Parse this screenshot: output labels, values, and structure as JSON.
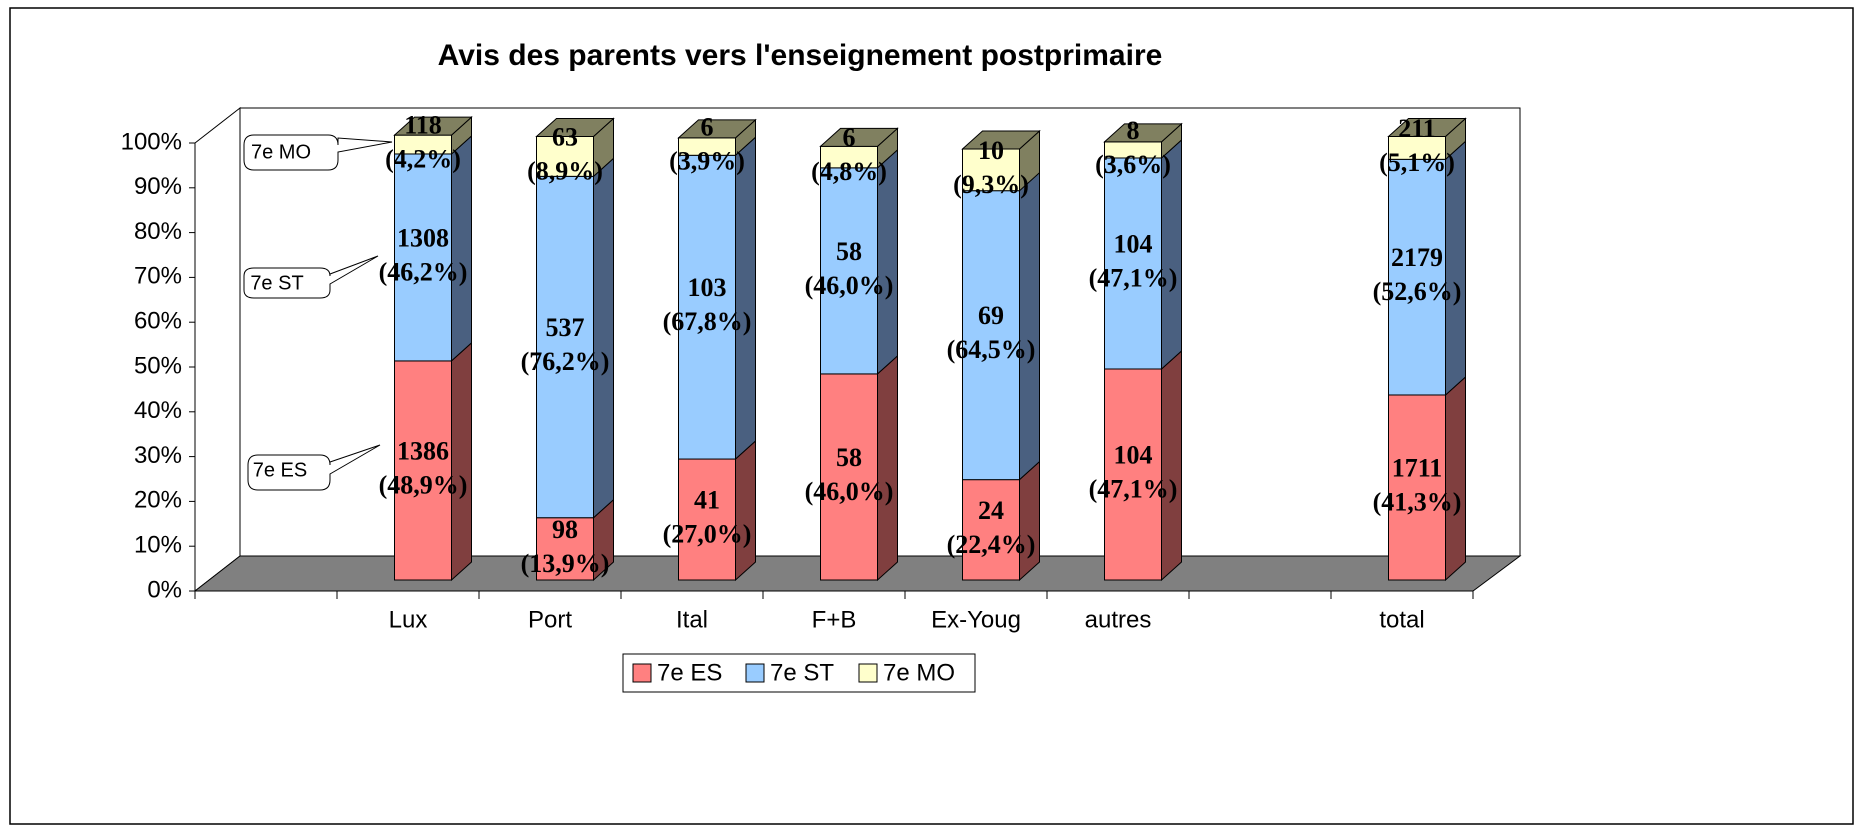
{
  "chart_data": {
    "type": "stacked_bar_3d",
    "title": "Avis des parents vers l'enseignement postprimaire",
    "categories": [
      null,
      "Lux",
      "Port",
      "Ital",
      "F+B",
      "Ex-Youg",
      "autres",
      null,
      "total"
    ],
    "series": [
      {
        "name": "7e ES",
        "color": "#ff8080",
        "side_color": "#803f3f",
        "values": [
          null,
          48.9,
          13.9,
          27.0,
          46.0,
          22.4,
          47.1,
          null,
          41.3
        ],
        "value_labels": [
          null,
          [
            "1386",
            "(48,9%)"
          ],
          [
            "98",
            "(13,9%)"
          ],
          [
            "41",
            "(27,0%)"
          ],
          [
            "58",
            "(46,0%)"
          ],
          [
            "24",
            "(22,4%)"
          ],
          [
            "104",
            "(47,1%)"
          ],
          null,
          [
            "1711",
            "(41,3%)"
          ]
        ]
      },
      {
        "name": "7e ST",
        "color": "#99ccff",
        "side_color": "#4a6080",
        "values": [
          null,
          46.2,
          76.2,
          67.8,
          46.0,
          64.5,
          47.1,
          null,
          52.6
        ],
        "value_labels": [
          null,
          [
            "1308",
            "(46,2%)"
          ],
          [
            "537",
            "(76,2%)"
          ],
          [
            "103",
            "(67,8%)"
          ],
          [
            "58",
            "(46,0%)"
          ],
          [
            "69",
            "(64,5%)"
          ],
          [
            "104",
            "(47,1%)"
          ],
          null,
          [
            "2179",
            "(52,6%)"
          ]
        ]
      },
      {
        "name": "7e MO",
        "color": "#ffffcc",
        "side_color": "#808060",
        "values": [
          null,
          4.2,
          8.9,
          3.9,
          4.8,
          9.3,
          3.6,
          null,
          5.1
        ],
        "value_labels": [
          null,
          [
            "118",
            "(4,2%)"
          ],
          [
            "63",
            "(8,9%)"
          ],
          [
            "6",
            "(3,9%)"
          ],
          [
            "6",
            "(4,8%)"
          ],
          [
            "10",
            "(9,3%)"
          ],
          [
            "8",
            "(3,6%)"
          ],
          null,
          [
            "211",
            "(5,1%)"
          ]
        ]
      }
    ],
    "annotations": [
      "7e MO",
      "7e ST",
      "7e ES"
    ],
    "ylim": [
      0,
      100
    ],
    "yticks": [
      {
        "value": 0,
        "label": "0%"
      },
      {
        "value": 10,
        "label": "10%"
      },
      {
        "value": 20,
        "label": "20%"
      },
      {
        "value": 30,
        "label": "30%"
      },
      {
        "value": 40,
        "label": "40%"
      },
      {
        "value": 50,
        "label": "50%"
      },
      {
        "value": 60,
        "label": "60%"
      },
      {
        "value": 70,
        "label": "70%"
      },
      {
        "value": 80,
        "label": "80%"
      },
      {
        "value": 90,
        "label": "90%"
      },
      {
        "value": 100,
        "label": "100%"
      }
    ],
    "grid": false,
    "legend": "bottom"
  }
}
